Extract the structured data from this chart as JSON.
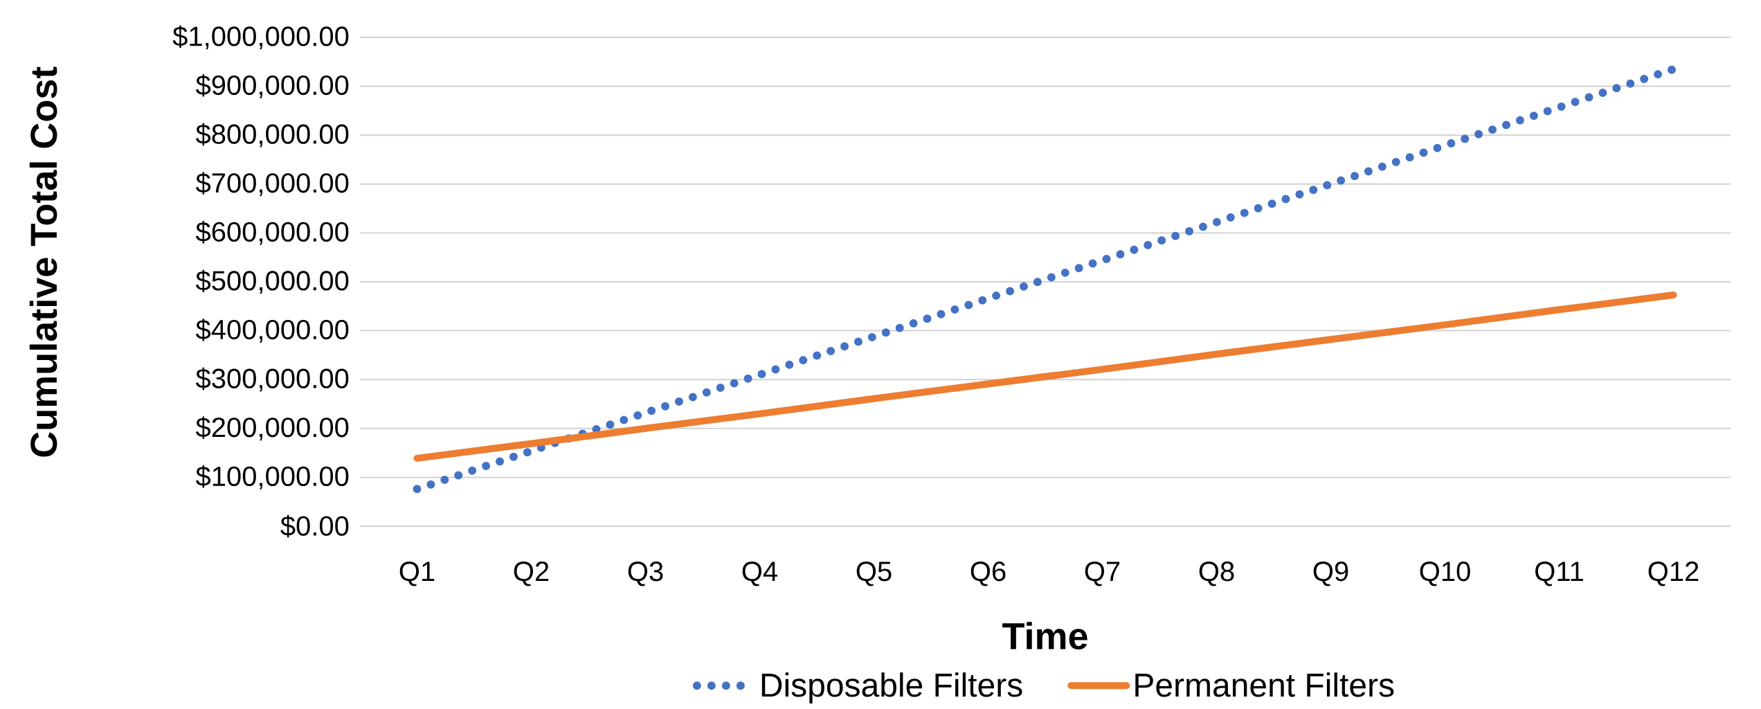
{
  "chart_data": {
    "type": "line",
    "xlabel": "Time",
    "ylabel": "Cumulative Total Cost",
    "categories": [
      "Q1",
      "Q2",
      "Q3",
      "Q4",
      "Q5",
      "Q6",
      "Q7",
      "Q8",
      "Q9",
      "Q10",
      "Q11",
      "Q12"
    ],
    "series": [
      {
        "name": "Disposable Filters",
        "color": "#4472c4",
        "line_style": "dotted",
        "values": [
          76000,
          154000,
          232000,
          310000,
          388000,
          466000,
          544000,
          622000,
          700000,
          779000,
          857000,
          935000
        ]
      },
      {
        "name": "Permanent Filters",
        "color": "#ed7d31",
        "line_style": "solid",
        "values": [
          139000,
          169000,
          200000,
          230000,
          261000,
          291000,
          321000,
          352000,
          382000,
          412000,
          443000,
          473000
        ]
      }
    ],
    "ylim": [
      0,
      1000000
    ],
    "yticks": [
      {
        "value": 0,
        "label": "$0.00"
      },
      {
        "value": 100000,
        "label": "$100,000.00"
      },
      {
        "value": 200000,
        "label": "$200,000.00"
      },
      {
        "value": 300000,
        "label": "$300,000.00"
      },
      {
        "value": 400000,
        "label": "$400,000.00"
      },
      {
        "value": 500000,
        "label": "$500,000.00"
      },
      {
        "value": 600000,
        "label": "$600,000.00"
      },
      {
        "value": 700000,
        "label": "$700,000.00"
      },
      {
        "value": 800000,
        "label": "$800,000.00"
      },
      {
        "value": 900000,
        "label": "$900,000.00"
      },
      {
        "value": 1000000,
        "label": "$1,000,000.00"
      }
    ],
    "grid": "y",
    "legend": "bottom",
    "marker": "none"
  }
}
